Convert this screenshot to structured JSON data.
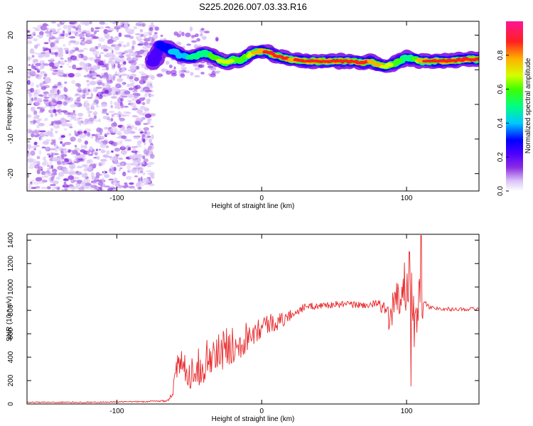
{
  "figure_title": "S225.2026.007.03.33.R16",
  "chart_data": [
    {
      "type": "heatmap",
      "title": "S225.2026.007.03.33.R16",
      "xlabel": "Height of straight line (km)",
      "ylabel": "Frequency (Hz)",
      "xlim": [
        -162,
        150
      ],
      "ylim": [
        -25,
        24
      ],
      "xticks": [
        -100,
        0,
        100
      ],
      "yticks": [
        -20,
        -10,
        0,
        10,
        20
      ],
      "colorbar": {
        "label": "Normalized spectral amplitude",
        "range": [
          0,
          1
        ],
        "ticks": [
          "0.0",
          "0.2",
          "0.4",
          "0.6",
          "0.8"
        ],
        "colors": [
          "#ffffff",
          "#d9c2f7",
          "#8a2be2",
          "#4b00ff",
          "#0000ff",
          "#00c8ff",
          "#00ff80",
          "#40ff00",
          "#d4ff00",
          "#ffb000",
          "#ff2020",
          "#ff1493"
        ]
      },
      "noise_region_x": [
        -162,
        -75
      ],
      "ridge": {
        "x": [
          -75,
          -70,
          -65,
          -60,
          -55,
          -50,
          -45,
          -40,
          -35,
          -30,
          -25,
          -20,
          -15,
          -10,
          -5,
          0,
          5,
          10,
          15,
          20,
          30,
          40,
          50,
          60,
          70,
          75,
          80,
          85,
          90,
          95,
          100,
          105,
          110,
          120,
          130,
          140,
          150
        ],
        "freq": [
          12,
          17,
          16,
          15,
          14,
          13.5,
          14,
          15,
          14,
          13,
          12,
          13,
          12.5,
          14,
          15,
          15.5,
          15,
          14,
          13.5,
          13,
          12.5,
          12.5,
          12.5,
          12.5,
          12,
          12.5,
          11.5,
          11,
          11.5,
          12.5,
          13.5,
          13,
          12.5,
          12.5,
          12.5,
          13,
          13
        ],
        "amp": [
          0.3,
          0.35,
          0.4,
          0.5,
          0.45,
          0.5,
          0.55,
          0.5,
          0.6,
          0.7,
          0.75,
          0.7,
          0.6,
          0.7,
          0.8,
          0.85,
          0.9,
          0.9,
          0.9,
          0.85,
          0.9,
          0.92,
          0.95,
          0.95,
          0.9,
          0.85,
          0.8,
          0.75,
          0.7,
          0.6,
          0.5,
          0.6,
          0.85,
          0.95,
          0.95,
          0.95,
          0.95
        ]
      }
    },
    {
      "type": "line",
      "xlabel": "Height of straight line (km)",
      "ylabel": "SNR (10 * v/v)",
      "xlim": [
        -162,
        150
      ],
      "ylim": [
        0,
        1450
      ],
      "xticks": [
        -100,
        0,
        100
      ],
      "yticks": [
        0,
        200,
        400,
        600,
        800,
        1000,
        1200,
        1400
      ],
      "series": [
        {
          "name": "SNR",
          "color": "#e8292b",
          "x": [
            -162,
            -140,
            -120,
            -100,
            -80,
            -70,
            -65,
            -62,
            -60,
            -58,
            -55,
            -50,
            -45,
            -40,
            -35,
            -30,
            -25,
            -20,
            -15,
            -10,
            -5,
            0,
            5,
            10,
            15,
            20,
            25,
            30,
            40,
            50,
            60,
            70,
            80,
            85,
            88,
            92,
            95,
            98,
            100,
            103,
            105,
            108,
            110,
            112,
            115,
            120,
            130,
            140,
            150
          ],
          "value": [
            15,
            15,
            15,
            18,
            20,
            25,
            30,
            80,
            200,
            320,
            330,
            270,
            300,
            350,
            400,
            430,
            480,
            500,
            540,
            580,
            640,
            660,
            690,
            700,
            720,
            760,
            800,
            830,
            840,
            850,
            850,
            845,
            850,
            820,
            700,
            900,
            880,
            1050,
            900,
            1150,
            650,
            900,
            780,
            900,
            830,
            820,
            810,
            810,
            815
          ],
          "jitter": [
            5,
            5,
            5,
            5,
            6,
            8,
            10,
            40,
            90,
            130,
            130,
            140,
            160,
            170,
            190,
            180,
            170,
            160,
            150,
            140,
            120,
            100,
            90,
            80,
            60,
            50,
            40,
            30,
            30,
            30,
            30,
            30,
            40,
            60,
            150,
            160,
            200,
            230,
            220,
            260,
            240,
            220,
            280,
            60,
            20,
            18,
            15,
            15,
            15
          ],
          "peaks": [
            {
              "x": 102,
              "value": 1300
            },
            {
              "x": 110,
              "value": 1440
            },
            {
              "x": 103,
              "value": 150
            }
          ]
        }
      ]
    }
  ]
}
